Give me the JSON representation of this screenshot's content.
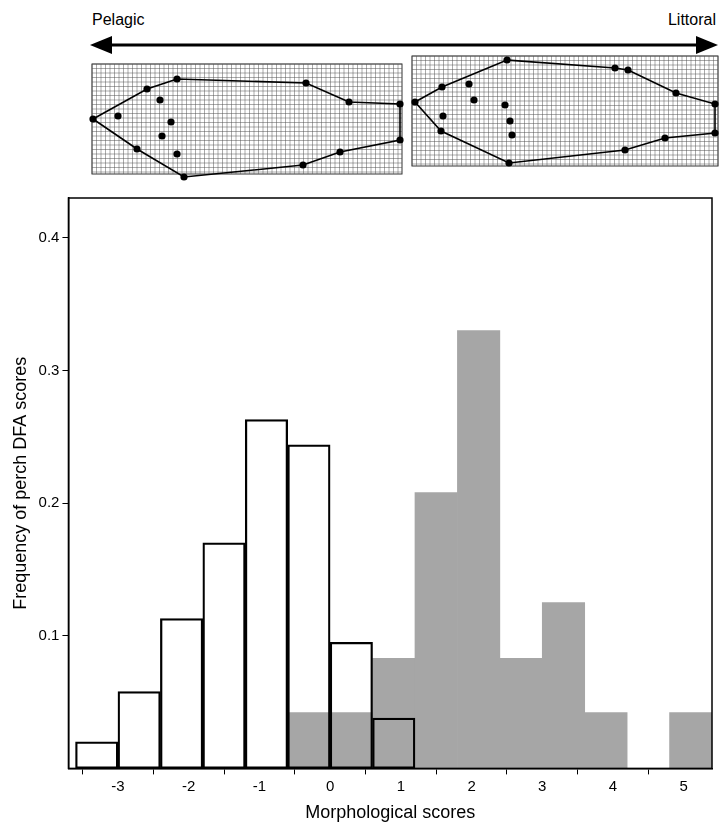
{
  "chart_data": {
    "type": "histogram",
    "arrow": {
      "left": "Pelagic",
      "right": "Littoral"
    },
    "x_label": "Morphological scores",
    "y_label": "Frequency of perch DFA scores",
    "series": [
      {
        "color": "#ffffff",
        "bins": [
          -3.6,
          -3.0,
          -2.4,
          -1.8,
          -1.2,
          -0.6,
          0,
          0.6,
          1.2
        ],
        "values": [
          0.02,
          0.058,
          0.113,
          0.17,
          0.263,
          0.244,
          0.095,
          0.038
        ]
      },
      {
        "color": "#a6a6a6",
        "bins": [
          -0.6,
          0,
          0.6,
          1.2,
          1.8,
          2.4,
          3.0,
          3.6,
          4.2,
          4.8,
          5.4
        ],
        "values": [
          0.042,
          0.042,
          0.083,
          0.208,
          0.33,
          0.083,
          0.125,
          0.042,
          0,
          0.042
        ]
      }
    ],
    "xlim": [
      -3.7,
      5.4
    ],
    "xticks": [
      -3,
      -2,
      -1,
      0,
      1,
      2,
      3,
      4,
      5
    ],
    "ylim": [
      0,
      0.43
    ],
    "yticks": [
      0.1,
      0.2,
      0.3,
      0.4
    ],
    "grid": false
  }
}
